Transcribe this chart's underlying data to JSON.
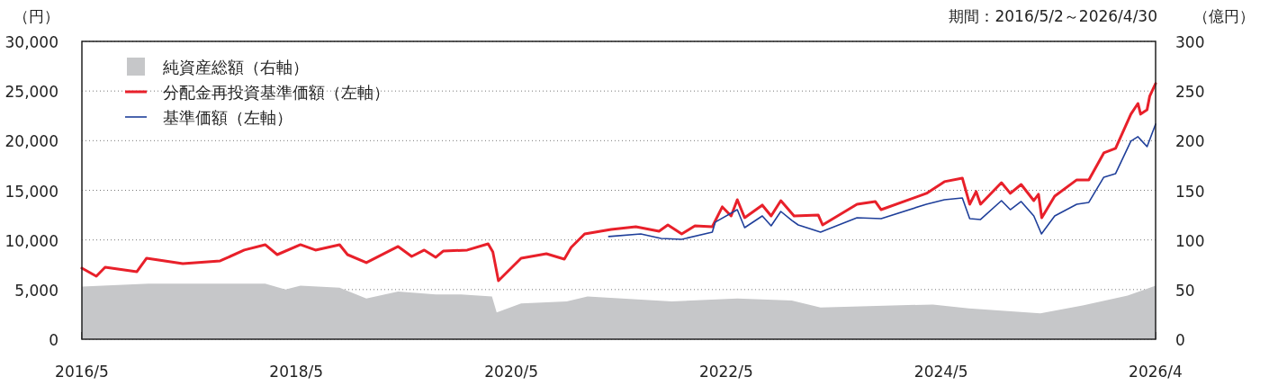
{
  "chart_data": {
    "type": "line",
    "ylabel": "（円）",
    "y2label": "（億円）",
    "annotations": [
      "期間：2016/5/2～2026/4/30"
    ],
    "xlim": [
      "2016-05-02",
      "2026-04-30"
    ],
    "xticks": [
      {
        "value": "2016-05-02",
        "label": "2016/5"
      },
      {
        "value": "2018-05-01",
        "label": "2018/5"
      },
      {
        "value": "2020-05-01",
        "label": "2020/5"
      },
      {
        "value": "2022-05-01",
        "label": "2022/5"
      },
      {
        "value": "2024-05-01",
        "label": "2024/5"
      },
      {
        "value": "2026-04-30",
        "label": "2026/4"
      }
    ],
    "ylim": [
      0,
      30000
    ],
    "yticks": [
      0,
      {
        "value": 5000,
        "label": "5,000"
      },
      {
        "value": 10000,
        "label": "10,000"
      },
      {
        "value": 15000,
        "label": "15,000"
      },
      {
        "value": 20000,
        "label": "20,000"
      },
      {
        "value": 25000,
        "label": "25,000"
      },
      {
        "value": 30000,
        "label": "30,000"
      }
    ],
    "y2lim": [
      0,
      300
    ],
    "y2ticks": [
      0,
      50,
      100,
      150,
      200,
      250,
      300
    ],
    "grid": "y",
    "legend": "top left",
    "line_style": "solid",
    "marker": "none",
    "series": [
      {
        "name": "純資産総額（右軸）",
        "type": "area",
        "axis": "y2",
        "color": "#c6c7c9",
        "x": [
          "2016-05-02",
          "2016-12-15",
          "2018-01-15",
          "2018-03-25",
          "2018-05-15",
          "2018-09-25",
          "2018-12-25",
          "2019-04-12",
          "2019-08-18",
          "2019-11-12",
          "2020-02-25",
          "2020-03-12",
          "2020-06-03",
          "2020-11-05",
          "2021-01-15",
          "2021-10-28",
          "2022-06-08",
          "2022-12-10",
          "2023-03-18",
          "2024-04-03",
          "2024-08-03",
          "2025-04-03",
          "2025-08-25",
          "2026-01-25",
          "2026-04-30"
        ],
        "values": [
          53,
          56,
          56,
          50,
          54,
          52,
          41,
          48,
          45,
          45,
          43,
          27,
          36,
          38,
          43,
          38,
          41,
          39,
          32,
          35,
          31,
          26,
          34,
          44,
          54
        ]
      },
      {
        "name": "分配金再投資基準価額（左軸）",
        "color": "#e8202a",
        "x": [
          "2016-05-02",
          "2016-06-20",
          "2016-07-20",
          "2016-11-05",
          "2016-12-08",
          "2017-04-10",
          "2017-08-15",
          "2017-11-05",
          "2018-01-15",
          "2018-02-25",
          "2018-05-15",
          "2018-07-05",
          "2018-09-25",
          "2018-10-22",
          "2018-12-25",
          "2019-04-12",
          "2019-05-28",
          "2019-07-10",
          "2019-08-18",
          "2019-09-12",
          "2019-12-03",
          "2020-02-12",
          "2020-02-28",
          "2020-03-18",
          "2020-06-03",
          "2020-08-28",
          "2020-10-28",
          "2020-11-20",
          "2021-01-05",
          "2021-04-05",
          "2021-06-28",
          "2021-09-15",
          "2021-10-15",
          "2021-12-01",
          "2022-01-15",
          "2022-03-15",
          "2022-04-18",
          "2022-05-18",
          "2022-06-08",
          "2022-07-03",
          "2022-09-01",
          "2022-10-01",
          "2022-11-03",
          "2022-12-10",
          "2022-12-18",
          "2023-03-10",
          "2023-03-25",
          "2023-07-20",
          "2023-09-20",
          "2023-10-10",
          "2024-03-12",
          "2024-05-12",
          "2024-07-12",
          "2024-08-06",
          "2024-08-28",
          "2024-09-12",
          "2024-11-22",
          "2024-12-22",
          "2025-01-28",
          "2025-03-12",
          "2025-03-28",
          "2025-04-08",
          "2025-05-22",
          "2025-08-05",
          "2025-09-15",
          "2025-11-05",
          "2025-12-15",
          "2026-02-05",
          "2026-03-01",
          "2026-03-10",
          "2026-04-01",
          "2026-04-10",
          "2026-04-30"
        ],
        "values": [
          7160,
          6350,
          7250,
          6800,
          8160,
          7620,
          7890,
          8980,
          9520,
          8520,
          9520,
          8980,
          9520,
          8520,
          7710,
          9340,
          8340,
          8980,
          8250,
          8880,
          8980,
          9610,
          8790,
          5890,
          8160,
          8610,
          8070,
          9250,
          10610,
          11060,
          11330,
          10880,
          11510,
          10610,
          11420,
          11330,
          13330,
          12420,
          14050,
          12240,
          13510,
          12420,
          13960,
          12690,
          12420,
          12510,
          11510,
          13600,
          13870,
          13050,
          14690,
          15870,
          16230,
          13600,
          14870,
          13600,
          15770,
          14690,
          15590,
          13960,
          14600,
          12240,
          14410,
          16050,
          16050,
          18770,
          19220,
          22670,
          23750,
          22670,
          23120,
          24480,
          25750
        ]
      },
      {
        "name": "基準価額（左軸）",
        "color": "#1f3f9a",
        "x": [
          "2021-03-28",
          "2021-07-15",
          "2021-09-22",
          "2021-12-01",
          "2022-03-15",
          "2022-03-25",
          "2022-06-08",
          "2022-07-03",
          "2022-09-01",
          "2022-10-01",
          "2022-11-03",
          "2022-12-10",
          "2023-01-01",
          "2023-03-18",
          "2023-07-20",
          "2023-10-10",
          "2024-03-12",
          "2024-05-12",
          "2024-07-12",
          "2024-08-06",
          "2024-09-12",
          "2024-11-22",
          "2024-12-22",
          "2025-01-28",
          "2025-03-12",
          "2025-04-07",
          "2025-05-22",
          "2025-08-05",
          "2025-09-15",
          "2025-11-05",
          "2025-12-15",
          "2026-02-05",
          "2026-03-01",
          "2026-04-01",
          "2026-04-30"
        ],
        "values": [
          10340,
          10610,
          10150,
          10060,
          10790,
          11790,
          13050,
          11240,
          12420,
          11420,
          12870,
          11970,
          11510,
          10790,
          12240,
          12150,
          13600,
          14050,
          14230,
          12150,
          12060,
          13960,
          13050,
          13870,
          12420,
          10610,
          12420,
          13600,
          13780,
          16320,
          16680,
          19950,
          20400,
          19400,
          21670
        ]
      }
    ]
  }
}
